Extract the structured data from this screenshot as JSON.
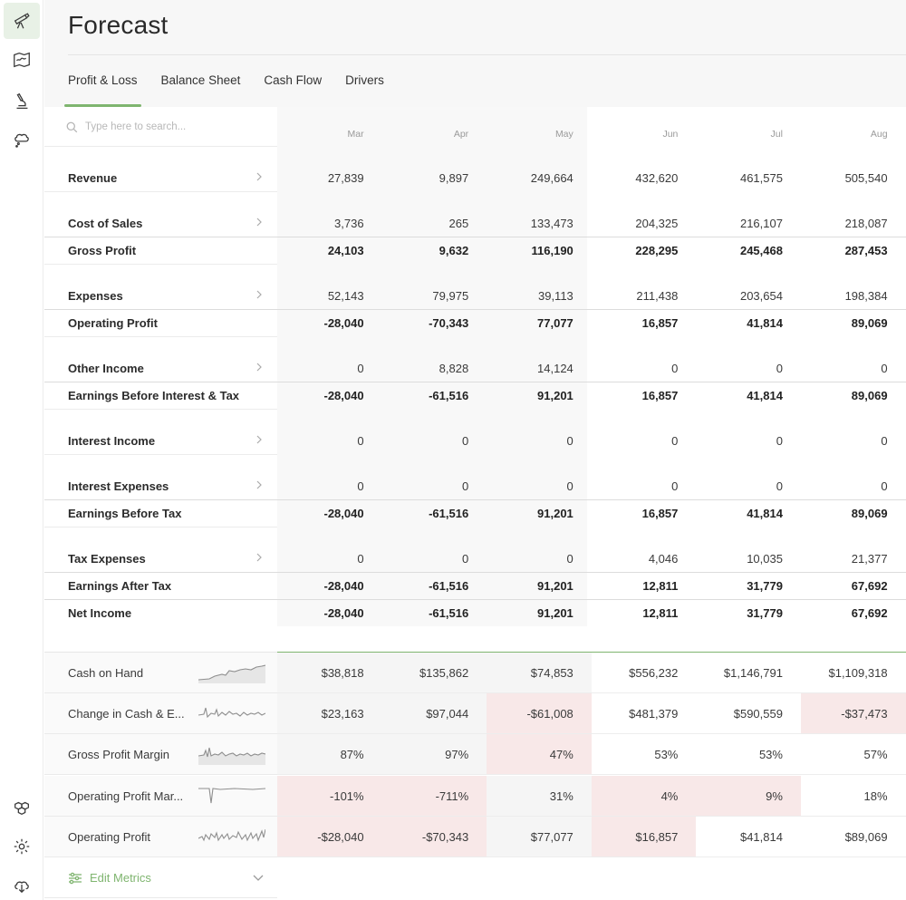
{
  "page": {
    "title": "Forecast"
  },
  "tabs": [
    {
      "label": "Profit & Loss",
      "active": true
    },
    {
      "label": "Balance Sheet",
      "active": false
    },
    {
      "label": "Cash Flow",
      "active": false
    },
    {
      "label": "Drivers",
      "active": false
    }
  ],
  "search": {
    "placeholder": "Type here to search..."
  },
  "months": [
    "Mar",
    "Apr",
    "May",
    "Jun",
    "Jul",
    "Aug"
  ],
  "rows": [
    {
      "label": "Revenue",
      "expandable": true,
      "total": false,
      "values": [
        "27,839",
        "9,897",
        "249,664",
        "432,620",
        "461,575",
        "505,540"
      ]
    },
    {
      "label": "Cost of Sales",
      "expandable": true,
      "total": false,
      "values": [
        "3,736",
        "265",
        "133,473",
        "204,325",
        "216,107",
        "218,087"
      ]
    },
    {
      "label": "Gross Profit",
      "expandable": false,
      "total": true,
      "values": [
        "24,103",
        "9,632",
        "116,190",
        "228,295",
        "245,468",
        "287,453"
      ]
    },
    {
      "label": "Expenses",
      "expandable": true,
      "total": false,
      "values": [
        "52,143",
        "79,975",
        "39,113",
        "211,438",
        "203,654",
        "198,384"
      ]
    },
    {
      "label": "Operating Profit",
      "expandable": false,
      "total": true,
      "values": [
        "-28,040",
        "-70,343",
        "77,077",
        "16,857",
        "41,814",
        "89,069"
      ]
    },
    {
      "label": "Other Income",
      "expandable": true,
      "total": false,
      "values": [
        "0",
        "8,828",
        "14,124",
        "0",
        "0",
        "0"
      ]
    },
    {
      "label": "Earnings Before Interest & Tax",
      "expandable": false,
      "total": true,
      "values": [
        "-28,040",
        "-61,516",
        "91,201",
        "16,857",
        "41,814",
        "89,069"
      ]
    },
    {
      "label": "Interest Income",
      "expandable": true,
      "total": false,
      "values": [
        "0",
        "0",
        "0",
        "0",
        "0",
        "0"
      ]
    },
    {
      "label": "Interest Expenses",
      "expandable": true,
      "total": false,
      "values": [
        "0",
        "0",
        "0",
        "0",
        "0",
        "0"
      ]
    },
    {
      "label": "Earnings Before Tax",
      "expandable": false,
      "total": true,
      "values": [
        "-28,040",
        "-61,516",
        "91,201",
        "16,857",
        "41,814",
        "89,069"
      ]
    },
    {
      "label": "Tax Expenses",
      "expandable": true,
      "total": false,
      "values": [
        "0",
        "0",
        "0",
        "4,046",
        "10,035",
        "21,377"
      ]
    },
    {
      "label": "Earnings After Tax",
      "expandable": false,
      "total": true,
      "values": [
        "-28,040",
        "-61,516",
        "91,201",
        "12,811",
        "31,779",
        "67,692"
      ]
    },
    {
      "label": "Net Income",
      "expandable": false,
      "total": true,
      "values": [
        "-28,040",
        "-61,516",
        "91,201",
        "12,811",
        "31,779",
        "67,692"
      ]
    }
  ],
  "metrics": [
    {
      "label": "Cash on Hand",
      "values": [
        "$38,818",
        "$135,862",
        "$74,853",
        "$556,232",
        "$1,146,791",
        "$1,109,318"
      ],
      "highlights": [
        "gray",
        "gray",
        "gray",
        "white",
        "white",
        "white"
      ]
    },
    {
      "label": "Change in Cash & E...",
      "values": [
        "$23,163",
        "$97,044",
        "-$61,008",
        "$481,379",
        "$590,559",
        "-$37,473"
      ],
      "highlights": [
        "gray",
        "gray",
        "pink",
        "white",
        "white",
        "pink"
      ]
    },
    {
      "label": "Gross Profit Margin",
      "values": [
        "87%",
        "97%",
        "47%",
        "53%",
        "53%",
        "57%"
      ],
      "highlights": [
        "gray",
        "gray",
        "pink",
        "white",
        "white",
        "white"
      ]
    },
    {
      "label": "Operating Profit Mar...",
      "values": [
        "-101%",
        "-711%",
        "31%",
        "4%",
        "9%",
        "18%"
      ],
      "highlights": [
        "pink",
        "pink",
        "gray",
        "pink",
        "pink",
        "white"
      ]
    },
    {
      "label": "Operating Profit",
      "values": [
        "-$28,040",
        "-$70,343",
        "$77,077",
        "$16,857",
        "$41,814",
        "$89,069"
      ],
      "highlights": [
        "pink",
        "pink",
        "gray",
        "pink",
        "white",
        "white"
      ]
    }
  ],
  "edit_metrics": {
    "label": "Edit Metrics"
  },
  "colors": {
    "accent": "#7fb56f",
    "negative_bg": "#f8e8e8"
  }
}
